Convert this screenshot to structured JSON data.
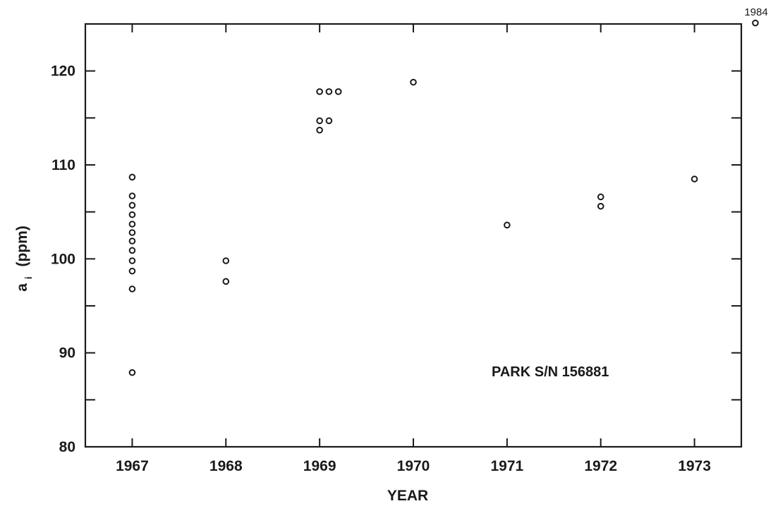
{
  "chart_data": {
    "type": "scatter",
    "title": "",
    "xlabel": "YEAR",
    "ylabel_main": "a",
    "ylabel_sub": "i",
    "ylabel_units": "(ppm)",
    "xlim": [
      1966.5,
      1973.5
    ],
    "ylim": [
      80,
      125
    ],
    "x_ticks": [
      "1967",
      "1968",
      "1969",
      "1970",
      "1971",
      "1972",
      "1973"
    ],
    "y_ticks": [
      "80",
      "90",
      "100",
      "110",
      "120"
    ],
    "y_minor_ticks": [
      85,
      95,
      105,
      115
    ],
    "annotation": "PARK S/N 156881",
    "outlier_label": "1984",
    "points": [
      {
        "x": 1967.0,
        "y": 108.7
      },
      {
        "x": 1967.0,
        "y": 106.7
      },
      {
        "x": 1967.0,
        "y": 105.7
      },
      {
        "x": 1967.0,
        "y": 104.7
      },
      {
        "x": 1967.0,
        "y": 103.7
      },
      {
        "x": 1967.0,
        "y": 102.8
      },
      {
        "x": 1967.0,
        "y": 101.9
      },
      {
        "x": 1967.0,
        "y": 100.9
      },
      {
        "x": 1967.0,
        "y": 99.8
      },
      {
        "x": 1967.0,
        "y": 98.7
      },
      {
        "x": 1967.0,
        "y": 96.8
      },
      {
        "x": 1967.0,
        "y": 87.9
      },
      {
        "x": 1968.0,
        "y": 99.8
      },
      {
        "x": 1968.0,
        "y": 97.6
      },
      {
        "x": 1969.0,
        "y": 117.8
      },
      {
        "x": 1969.1,
        "y": 117.8
      },
      {
        "x": 1969.2,
        "y": 117.8
      },
      {
        "x": 1969.0,
        "y": 114.7
      },
      {
        "x": 1969.1,
        "y": 114.7
      },
      {
        "x": 1969.0,
        "y": 113.7
      },
      {
        "x": 1970.0,
        "y": 118.8
      },
      {
        "x": 1971.0,
        "y": 103.6
      },
      {
        "x": 1972.0,
        "y": 106.6
      },
      {
        "x": 1972.0,
        "y": 105.6
      },
      {
        "x": 1973.0,
        "y": 108.5
      },
      {
        "x": 1973.65,
        "y": 125.1
      }
    ],
    "grid": false,
    "legend": "none"
  }
}
